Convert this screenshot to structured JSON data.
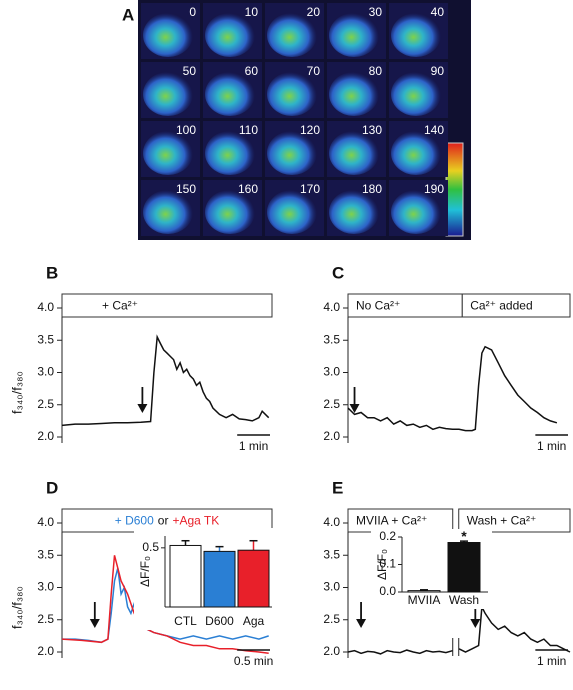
{
  "image_panel": {
    "label": "A",
    "frame_labels": [
      "0",
      "10",
      "20",
      "30",
      "40",
      "50",
      "60",
      "70",
      "80",
      "90",
      "100",
      "110",
      "120",
      "130",
      "140",
      "150",
      "160",
      "170",
      "180",
      "190"
    ]
  },
  "chart_data": [
    {
      "type": "line",
      "panel_label": "B",
      "ylabel": "f₃₄₀/f₃₈₀",
      "header": "+  Ca²⁺",
      "color": "#111111",
      "x": [
        0,
        0.4,
        0.8,
        1.2,
        1.6,
        2.0,
        2.4,
        2.7,
        2.8,
        2.9,
        3.0,
        3.1,
        3.2,
        3.3,
        3.4,
        3.5,
        3.6,
        3.7,
        3.8,
        3.9,
        4.0,
        4.1,
        4.2,
        4.3,
        4.4,
        4.5,
        4.6,
        4.8,
        5.0,
        5.2,
        5.4,
        5.6,
        5.8,
        6.0,
        6.1,
        6.3
      ],
      "values": [
        2.18,
        2.2,
        2.2,
        2.21,
        2.22,
        2.22,
        2.23,
        2.24,
        3.0,
        3.55,
        3.45,
        3.35,
        3.3,
        3.25,
        3.2,
        3.05,
        3.15,
        3.0,
        3.05,
        2.95,
        2.9,
        2.8,
        2.85,
        2.7,
        2.6,
        2.55,
        2.45,
        2.35,
        2.3,
        2.35,
        2.28,
        2.27,
        2.25,
        2.3,
        2.4,
        2.3
      ],
      "arrows": [
        2.45
      ],
      "scalebar": {
        "value": 1,
        "label": "1 min"
      },
      "xlim": [
        0,
        6.4
      ],
      "ylim": [
        2,
        4
      ],
      "yticks": [
        {
          "value": 2,
          "label": "2.0"
        },
        2.5,
        {
          "value": 3,
          "label": "3.0"
        },
        3.5,
        {
          "value": 4,
          "label": "4.0"
        }
      ]
    },
    {
      "type": "line",
      "panel_label": "C",
      "headers": [
        "No Ca²⁺",
        "Ca²⁺ added"
      ],
      "header_split": 3.5,
      "color": "#111111",
      "x": [
        0,
        0.2,
        0.4,
        0.6,
        0.8,
        1.0,
        1.2,
        1.4,
        1.6,
        1.8,
        2.0,
        2.2,
        2.4,
        2.6,
        2.8,
        3.0,
        3.2,
        3.4,
        3.6,
        3.8,
        3.9,
        4.0,
        4.1,
        4.2,
        4.4,
        4.6,
        4.8,
        5.0,
        5.2,
        5.4,
        5.6,
        5.8,
        6.0,
        6.2,
        6.4
      ],
      "values": [
        2.45,
        2.35,
        2.38,
        2.3,
        2.3,
        2.25,
        2.3,
        2.2,
        2.25,
        2.18,
        2.2,
        2.15,
        2.18,
        2.12,
        2.15,
        2.13,
        2.12,
        2.12,
        2.1,
        2.1,
        2.12,
        2.8,
        3.3,
        3.4,
        3.35,
        3.15,
        2.95,
        2.8,
        2.65,
        2.55,
        2.45,
        2.38,
        2.3,
        2.25,
        2.22
      ],
      "arrows": [
        0.2
      ],
      "scalebar": {
        "value": 1,
        "label": "1 min"
      },
      "xlim": [
        0,
        6.8
      ],
      "ylim": [
        2,
        4
      ],
      "yticks": [
        {
          "value": 2,
          "label": "2.0"
        },
        2.5,
        {
          "value": 3,
          "label": "3.0"
        },
        3.5,
        {
          "value": 4,
          "label": "4.0"
        }
      ]
    },
    {
      "type": "line",
      "panel_label": "D",
      "ylabel": "f₃₄₀/f₃₈₀",
      "legend_joiner": "or",
      "series": [
        {
          "name": "+ D600",
          "color": "#2a7fd4",
          "x": [
            0,
            0.2,
            0.4,
            0.6,
            0.7,
            0.75,
            0.8,
            0.85,
            0.9,
            0.95,
            1.0,
            1.05,
            1.1,
            1.15,
            1.2,
            1.3,
            1.4,
            1.6,
            1.8,
            2.0,
            2.2,
            2.4,
            2.6,
            2.8,
            3.0,
            3.15
          ],
          "values": [
            2.2,
            2.2,
            2.18,
            2.15,
            2.2,
            2.6,
            3.1,
            3.3,
            2.9,
            3.0,
            2.7,
            2.6,
            2.75,
            2.5,
            2.6,
            2.35,
            2.3,
            2.25,
            2.2,
            2.25,
            2.2,
            2.25,
            2.2,
            2.25,
            2.2,
            2.25
          ]
        },
        {
          "name": "+Aga TK",
          "color": "#e8202a",
          "x": [
            0,
            0.3,
            0.6,
            0.7,
            0.75,
            0.8,
            0.85,
            0.9,
            1.0,
            1.1,
            1.2,
            1.4,
            1.6,
            1.8,
            2.0,
            2.2,
            2.4,
            2.6,
            2.8,
            3.0,
            3.15
          ],
          "values": [
            2.2,
            2.18,
            2.15,
            2.2,
            2.9,
            3.5,
            3.3,
            3.1,
            2.9,
            2.6,
            2.4,
            2.3,
            2.25,
            2.15,
            2.1,
            2.1,
            2.05,
            2.05,
            2.02,
            2.0,
            1.98
          ]
        }
      ],
      "arrows": [
        0.5
      ],
      "scalebar": {
        "value": 0.5,
        "label": "0.5 min"
      },
      "xlim": [
        0,
        3.2
      ],
      "ylim": [
        2,
        4
      ],
      "yticks": [
        {
          "value": 2,
          "label": "2.0"
        },
        2.5,
        {
          "value": 3,
          "label": "3.0"
        },
        3.5,
        {
          "value": 4,
          "label": "4.0"
        }
      ],
      "inset": {
        "type": "bar",
        "ylabel": "ΔF/F₀",
        "categories": [
          "CTL",
          "D600",
          "Aga"
        ],
        "values": [
          0.52,
          0.47,
          0.48
        ],
        "errors": [
          0.04,
          0.04,
          0.08
        ],
        "colors": [
          "#ffffff",
          "#2a7fd4",
          "#e8202a"
        ],
        "ylim": [
          0,
          0.6
        ],
        "yticks": [
          0.5
        ]
      }
    },
    {
      "type": "line",
      "panel_label": "E",
      "headers": [
        "MVIIA + Ca²⁺",
        "Wash + Ca²⁺"
      ],
      "color": "#111111",
      "x": [
        0,
        0.2,
        0.4,
        0.6,
        0.8,
        1.0,
        1.2,
        1.4,
        1.6,
        1.8,
        2.0,
        2.2,
        2.4,
        2.6,
        2.8,
        3.0,
        3.2,
        3.3,
        3.4,
        3.6,
        3.8,
        4.0,
        4.1,
        4.2,
        4.4,
        4.6,
        4.8,
        5.0,
        5.2,
        5.4,
        5.6,
        5.8,
        6.0,
        6.2,
        6.4,
        6.6,
        6.8
      ],
      "values": [
        2.0,
        2.02,
        1.98,
        2.01,
        2.0,
        1.97,
        2.02,
        2.0,
        1.99,
        2.03,
        2.0,
        1.98,
        2.02,
        2.0,
        2.01,
        1.99,
        2.02,
        null,
        2.05,
        2.0,
        2.05,
        2.1,
        2.7,
        2.6,
        2.45,
        2.35,
        2.4,
        2.3,
        2.25,
        2.3,
        2.2,
        2.15,
        2.2,
        2.1,
        2.1,
        2.05,
        2.0
      ],
      "axis_break": 3.3,
      "arrows": [
        0.4,
        3.9
      ],
      "scalebar": {
        "value": 1,
        "label": "1 min"
      },
      "xlim": [
        0,
        6.8
      ],
      "ylim": [
        2,
        4
      ],
      "yticks": [
        {
          "value": 2,
          "label": "2.0"
        },
        2.5,
        {
          "value": 3,
          "label": "3.0"
        },
        3.5,
        {
          "value": 4,
          "label": "4.0"
        }
      ],
      "inset": {
        "type": "bar",
        "ylabel": "ΔF/F₀",
        "categories": [
          "MVIIA",
          "Wash"
        ],
        "values": [
          0.005,
          0.18
        ],
        "errors": [
          0.003,
          0.005
        ],
        "colors": [
          "#ffffff",
          "#111111"
        ],
        "annotation": "*",
        "ylim": [
          0,
          0.2
        ],
        "yticks": [
          {
            "value": 0,
            "label": "0.0"
          },
          0.1,
          0.2
        ]
      }
    }
  ]
}
